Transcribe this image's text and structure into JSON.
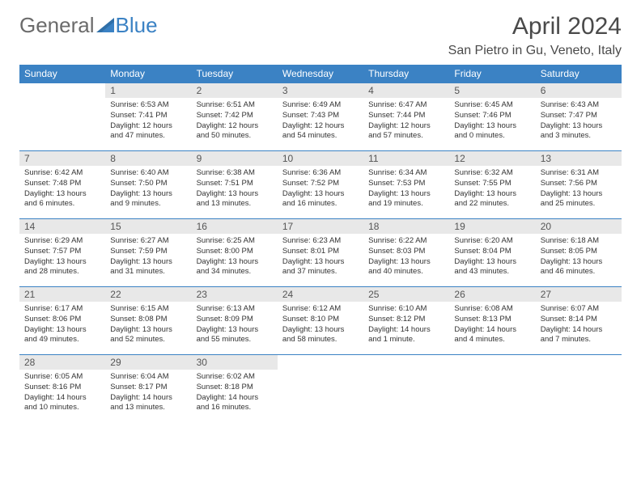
{
  "logo": {
    "text1": "General",
    "text2": "Blue"
  },
  "title": "April 2024",
  "location": "San Pietro in Gu, Veneto, Italy",
  "colors": {
    "header_bg": "#3b82c4",
    "header_text": "#ffffff",
    "daynum_bg": "#e8e8e8",
    "border": "#3b82c4",
    "text": "#333333",
    "logo_gray": "#6b6b6b",
    "logo_blue": "#3b82c4"
  },
  "weekdays": [
    "Sunday",
    "Monday",
    "Tuesday",
    "Wednesday",
    "Thursday",
    "Friday",
    "Saturday"
  ],
  "weeks": [
    [
      null,
      {
        "n": "1",
        "sr": "6:53 AM",
        "ss": "7:41 PM",
        "dl": "12 hours and 47 minutes."
      },
      {
        "n": "2",
        "sr": "6:51 AM",
        "ss": "7:42 PM",
        "dl": "12 hours and 50 minutes."
      },
      {
        "n": "3",
        "sr": "6:49 AM",
        "ss": "7:43 PM",
        "dl": "12 hours and 54 minutes."
      },
      {
        "n": "4",
        "sr": "6:47 AM",
        "ss": "7:44 PM",
        "dl": "12 hours and 57 minutes."
      },
      {
        "n": "5",
        "sr": "6:45 AM",
        "ss": "7:46 PM",
        "dl": "13 hours and 0 minutes."
      },
      {
        "n": "6",
        "sr": "6:43 AM",
        "ss": "7:47 PM",
        "dl": "13 hours and 3 minutes."
      }
    ],
    [
      {
        "n": "7",
        "sr": "6:42 AM",
        "ss": "7:48 PM",
        "dl": "13 hours and 6 minutes."
      },
      {
        "n": "8",
        "sr": "6:40 AM",
        "ss": "7:50 PM",
        "dl": "13 hours and 9 minutes."
      },
      {
        "n": "9",
        "sr": "6:38 AM",
        "ss": "7:51 PM",
        "dl": "13 hours and 13 minutes."
      },
      {
        "n": "10",
        "sr": "6:36 AM",
        "ss": "7:52 PM",
        "dl": "13 hours and 16 minutes."
      },
      {
        "n": "11",
        "sr": "6:34 AM",
        "ss": "7:53 PM",
        "dl": "13 hours and 19 minutes."
      },
      {
        "n": "12",
        "sr": "6:32 AM",
        "ss": "7:55 PM",
        "dl": "13 hours and 22 minutes."
      },
      {
        "n": "13",
        "sr": "6:31 AM",
        "ss": "7:56 PM",
        "dl": "13 hours and 25 minutes."
      }
    ],
    [
      {
        "n": "14",
        "sr": "6:29 AM",
        "ss": "7:57 PM",
        "dl": "13 hours and 28 minutes."
      },
      {
        "n": "15",
        "sr": "6:27 AM",
        "ss": "7:59 PM",
        "dl": "13 hours and 31 minutes."
      },
      {
        "n": "16",
        "sr": "6:25 AM",
        "ss": "8:00 PM",
        "dl": "13 hours and 34 minutes."
      },
      {
        "n": "17",
        "sr": "6:23 AM",
        "ss": "8:01 PM",
        "dl": "13 hours and 37 minutes."
      },
      {
        "n": "18",
        "sr": "6:22 AM",
        "ss": "8:03 PM",
        "dl": "13 hours and 40 minutes."
      },
      {
        "n": "19",
        "sr": "6:20 AM",
        "ss": "8:04 PM",
        "dl": "13 hours and 43 minutes."
      },
      {
        "n": "20",
        "sr": "6:18 AM",
        "ss": "8:05 PM",
        "dl": "13 hours and 46 minutes."
      }
    ],
    [
      {
        "n": "21",
        "sr": "6:17 AM",
        "ss": "8:06 PM",
        "dl": "13 hours and 49 minutes."
      },
      {
        "n": "22",
        "sr": "6:15 AM",
        "ss": "8:08 PM",
        "dl": "13 hours and 52 minutes."
      },
      {
        "n": "23",
        "sr": "6:13 AM",
        "ss": "8:09 PM",
        "dl": "13 hours and 55 minutes."
      },
      {
        "n": "24",
        "sr": "6:12 AM",
        "ss": "8:10 PM",
        "dl": "13 hours and 58 minutes."
      },
      {
        "n": "25",
        "sr": "6:10 AM",
        "ss": "8:12 PM",
        "dl": "14 hours and 1 minute."
      },
      {
        "n": "26",
        "sr": "6:08 AM",
        "ss": "8:13 PM",
        "dl": "14 hours and 4 minutes."
      },
      {
        "n": "27",
        "sr": "6:07 AM",
        "ss": "8:14 PM",
        "dl": "14 hours and 7 minutes."
      }
    ],
    [
      {
        "n": "28",
        "sr": "6:05 AM",
        "ss": "8:16 PM",
        "dl": "14 hours and 10 minutes."
      },
      {
        "n": "29",
        "sr": "6:04 AM",
        "ss": "8:17 PM",
        "dl": "14 hours and 13 minutes."
      },
      {
        "n": "30",
        "sr": "6:02 AM",
        "ss": "8:18 PM",
        "dl": "14 hours and 16 minutes."
      },
      null,
      null,
      null,
      null
    ]
  ],
  "labels": {
    "sunrise": "Sunrise:",
    "sunset": "Sunset:",
    "daylight": "Daylight:"
  }
}
